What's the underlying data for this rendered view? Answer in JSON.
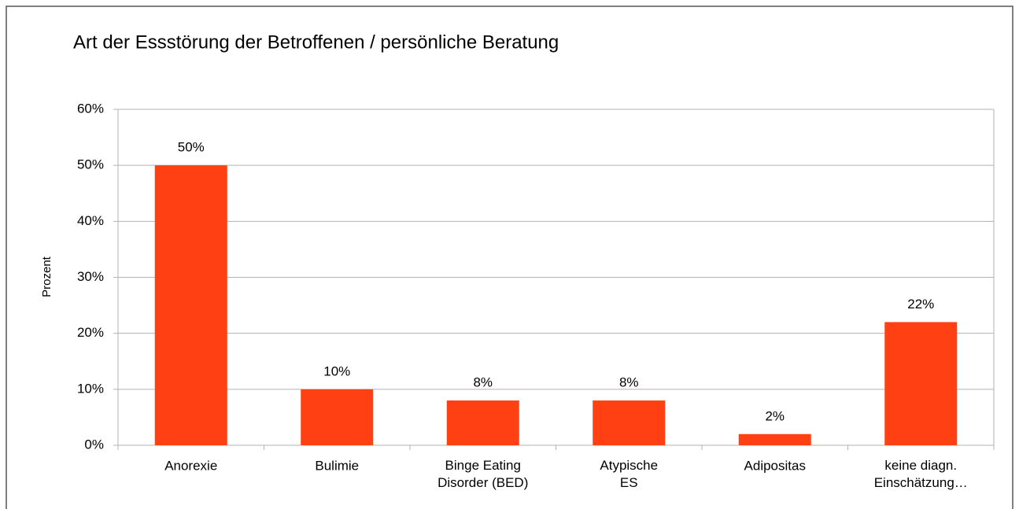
{
  "chart_data": {
    "type": "bar",
    "title": "Art der Essstörung der Betroffenen / persönliche Beratung",
    "y_label": "Prozent",
    "categories": [
      "Anorexie",
      "Bulimie",
      "Binge Eating\nDisorder (BED)",
      "Atypische\nES",
      "Adipositas",
      "keine diagn.\nEinschätzung…"
    ],
    "values": [
      50,
      10,
      8,
      8,
      2,
      22
    ],
    "value_labels": [
      "50%",
      "10%",
      "8%",
      "8%",
      "2%",
      "22%"
    ],
    "color": "#ff4013",
    "ylim": [
      0,
      60
    ],
    "yticks": [
      {
        "value": 0,
        "label": "0%"
      },
      {
        "value": 10,
        "label": "10%"
      },
      {
        "value": 20,
        "label": "20%"
      },
      {
        "value": 30,
        "label": "30%"
      },
      {
        "value": 40,
        "label": "40%"
      },
      {
        "value": 50,
        "label": "50%"
      },
      {
        "value": 60,
        "label": "60%"
      }
    ],
    "grid": true
  }
}
